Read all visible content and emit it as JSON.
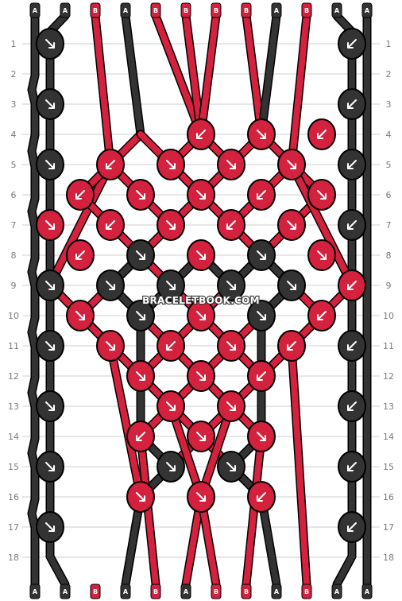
{
  "pattern": {
    "watermark": "BRACELETBOOK.COM",
    "strand_colors": {
      "A": "#333333",
      "B": "#d4213d"
    },
    "start_strings": [
      "A",
      "A",
      "B",
      "A",
      "B",
      "B",
      "B",
      "B",
      "A",
      "B",
      "A",
      "A"
    ],
    "end_strings": [
      "A",
      "A",
      "B",
      "A",
      "B",
      "A",
      "B",
      "B",
      "A",
      "B",
      "A",
      "A"
    ],
    "row_labels": [
      "1",
      "2",
      "3",
      "4",
      "5",
      "6",
      "7",
      "8",
      "9",
      "10",
      "11",
      "12",
      "13",
      "14",
      "15",
      "16",
      "17",
      "18"
    ],
    "knot_color_B": "#d4213d",
    "knot_color_A": "#333333",
    "rows": [
      [
        {
          "dir": "r",
          "c": "A"
        },
        null,
        null,
        null,
        null,
        {
          "dir": "l",
          "c": "A"
        }
      ],
      [],
      [
        {
          "dir": "r",
          "c": "A"
        },
        null,
        null,
        null,
        null,
        {
          "dir": "l",
          "c": "A"
        }
      ],
      [
        null,
        null,
        {
          "dir": "l",
          "c": "B"
        },
        {
          "dir": "r",
          "c": "B"
        },
        {
          "dir": "l",
          "c": "B"
        }
      ],
      [
        {
          "dir": "r",
          "c": "A"
        },
        {
          "dir": "l",
          "c": "B"
        },
        {
          "dir": "r",
          "c": "B"
        },
        {
          "dir": "r",
          "c": "B"
        },
        {
          "dir": "r",
          "c": "B"
        },
        {
          "dir": "l",
          "c": "A"
        }
      ],
      [
        {
          "dir": "l",
          "c": "B"
        },
        {
          "dir": "r",
          "c": "B"
        },
        {
          "dir": "r",
          "c": "B"
        },
        {
          "dir": "l",
          "c": "B"
        },
        {
          "dir": "r",
          "c": "B"
        }
      ],
      [
        {
          "dir": "r",
          "c": "B"
        },
        {
          "dir": "l",
          "c": "B"
        },
        {
          "dir": "r",
          "c": "B"
        },
        {
          "dir": "l",
          "c": "B"
        },
        {
          "dir": "r",
          "c": "B"
        },
        {
          "dir": "l",
          "c": "A"
        }
      ],
      [
        {
          "dir": "l",
          "c": "B"
        },
        {
          "dir": "r",
          "c": "A"
        },
        {
          "dir": "r",
          "c": "B"
        },
        {
          "dir": "r",
          "c": "A"
        },
        {
          "dir": "r",
          "c": "B"
        }
      ],
      [
        {
          "dir": "r",
          "c": "A"
        },
        {
          "dir": "r",
          "c": "A"
        },
        {
          "dir": "r",
          "c": "A"
        },
        {
          "dir": "r",
          "c": "A"
        },
        {
          "dir": "r",
          "c": "A"
        },
        {
          "dir": "l",
          "c": "B"
        }
      ],
      [
        {
          "dir": "r",
          "c": "B"
        },
        {
          "dir": "r",
          "c": "A"
        },
        {
          "dir": "r",
          "c": "B"
        },
        {
          "dir": "r",
          "c": "A"
        },
        {
          "dir": "l",
          "c": "B"
        }
      ],
      [
        {
          "dir": "r",
          "c": "A"
        },
        {
          "dir": "r",
          "c": "B"
        },
        {
          "dir": "l",
          "c": "B"
        },
        {
          "dir": "r",
          "c": "B"
        },
        {
          "dir": "l",
          "c": "B"
        },
        {
          "dir": "l",
          "c": "A"
        }
      ],
      [
        null,
        {
          "dir": "r",
          "c": "B"
        },
        {
          "dir": "r",
          "c": "B"
        },
        {
          "dir": "l",
          "c": "B"
        }
      ],
      [
        {
          "dir": "r",
          "c": "A"
        },
        null,
        {
          "dir": "r",
          "c": "B"
        },
        {
          "dir": "r",
          "c": "B"
        },
        null,
        {
          "dir": "l",
          "c": "A"
        }
      ],
      [
        null,
        {
          "dir": "l",
          "c": "B"
        },
        {
          "dir": "r",
          "c": "B"
        },
        {
          "dir": "r",
          "c": "B"
        }
      ],
      [
        {
          "dir": "r",
          "c": "A"
        },
        null,
        {
          "dir": "r",
          "c": "A"
        },
        {
          "dir": "r",
          "c": "A"
        },
        null,
        {
          "dir": "l",
          "c": "A"
        }
      ],
      [
        null,
        {
          "dir": "r",
          "c": "B"
        },
        {
          "dir": "r",
          "c": "B"
        },
        {
          "dir": "l",
          "c": "B"
        }
      ],
      [
        {
          "dir": "r",
          "c": "A"
        },
        null,
        null,
        null,
        null,
        {
          "dir": "l",
          "c": "A"
        }
      ],
      []
    ]
  }
}
